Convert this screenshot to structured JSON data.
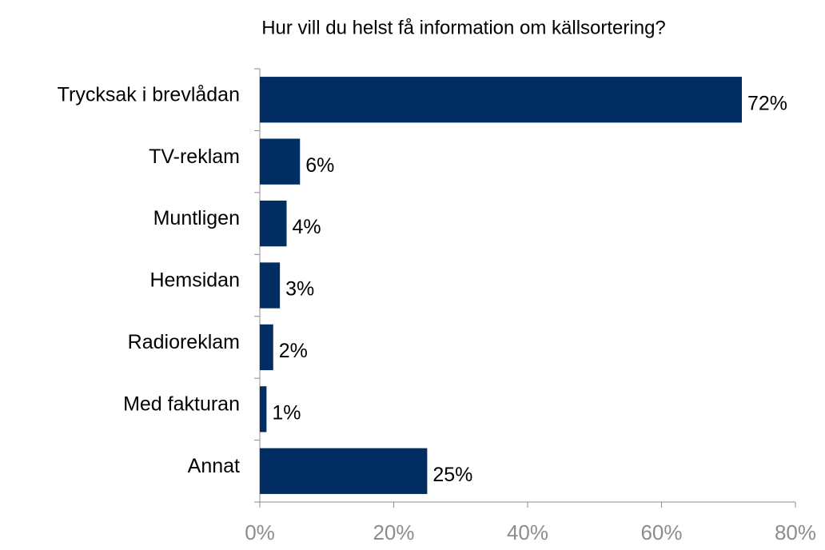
{
  "chart_data": {
    "type": "bar",
    "orientation": "horizontal",
    "title": "Hur vill du helst få information om källsortering?",
    "categories": [
      "Trycksak i brevlådan",
      "TV-reklam",
      "Muntligen",
      "Hemsidan",
      "Radioreklam",
      "Med fakturan",
      "Annat"
    ],
    "values": [
      72,
      6,
      4,
      3,
      2,
      1,
      25
    ],
    "value_labels": [
      "72%",
      "6%",
      "4%",
      "3%",
      "2%",
      "1%",
      "25%"
    ],
    "color": "#002d62",
    "xlim": [
      0,
      80
    ],
    "xticks": [
      {
        "value": 0,
        "label": "0%"
      },
      {
        "value": 20,
        "label": "20%"
      },
      {
        "value": 40,
        "label": "40%"
      },
      {
        "value": 60,
        "label": "60%"
      },
      {
        "value": 80,
        "label": "80%"
      }
    ],
    "grid": false
  }
}
